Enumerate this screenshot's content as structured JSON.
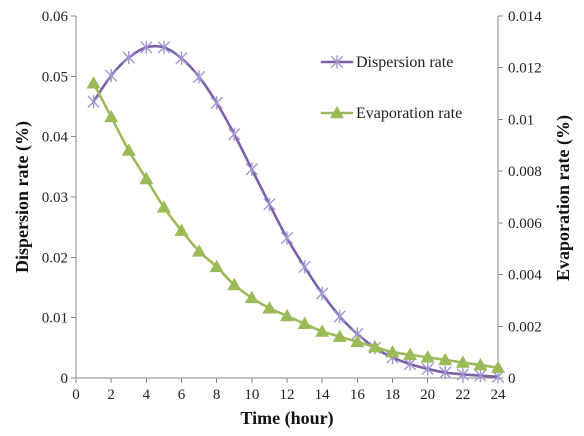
{
  "chart_data": {
    "type": "line",
    "smoothed": true,
    "grid": false,
    "legend_position": "top-right",
    "xlabel": "Time (hour)",
    "ylabel": "Dispersion rate (%)",
    "y2label": "Evaporation rate (%)",
    "xlim": [
      0,
      24
    ],
    "ylim": [
      0,
      0.06
    ],
    "y2lim": [
      0,
      0.014
    ],
    "xticks": [
      "0",
      "2",
      "4",
      "6",
      "8",
      "10",
      "12",
      "14",
      "16",
      "18",
      "20",
      "22",
      "24"
    ],
    "yticks": [
      "0",
      "0.01",
      "0.02",
      "0.03",
      "0.04",
      "0.05",
      "0.06"
    ],
    "y2ticks": [
      "0",
      "0.002",
      "0.004",
      "0.006",
      "0.008",
      "0.01",
      "0.012",
      "0.014"
    ],
    "x": [
      1,
      2,
      3,
      4,
      5,
      6,
      7,
      8,
      9,
      10,
      11,
      12,
      13,
      14,
      15,
      16,
      17,
      18,
      19,
      20,
      21,
      22,
      23,
      24
    ],
    "series": [
      {
        "name": "Dispersion rate",
        "axis": "left",
        "color": "#7e60a9",
        "marker": "star",
        "marker_color": "#a395d1",
        "values": [
          0.0458,
          0.0501,
          0.0531,
          0.0548,
          0.0548,
          0.053,
          0.0499,
          0.0456,
          0.0404,
          0.0346,
          0.0288,
          0.0232,
          0.0184,
          0.014,
          0.0102,
          0.0073,
          0.005,
          0.0034,
          0.0023,
          0.0015,
          0.0009,
          0.0006,
          0.0004,
          0.0002
        ]
      },
      {
        "name": "Evaporation rate",
        "axis": "right",
        "color": "#9bbb59",
        "marker": "triangle",
        "marker_color": "#9bbb59",
        "values": [
          0.0114,
          0.0101,
          0.0088,
          0.0077,
          0.0066,
          0.0057,
          0.0049,
          0.0043,
          0.0036,
          0.0031,
          0.0027,
          0.0024,
          0.0021,
          0.0018,
          0.0016,
          0.0014,
          0.0012,
          0.001,
          0.0009,
          0.0008,
          0.0007,
          0.0006,
          0.0005,
          0.0004
        ]
      }
    ]
  }
}
